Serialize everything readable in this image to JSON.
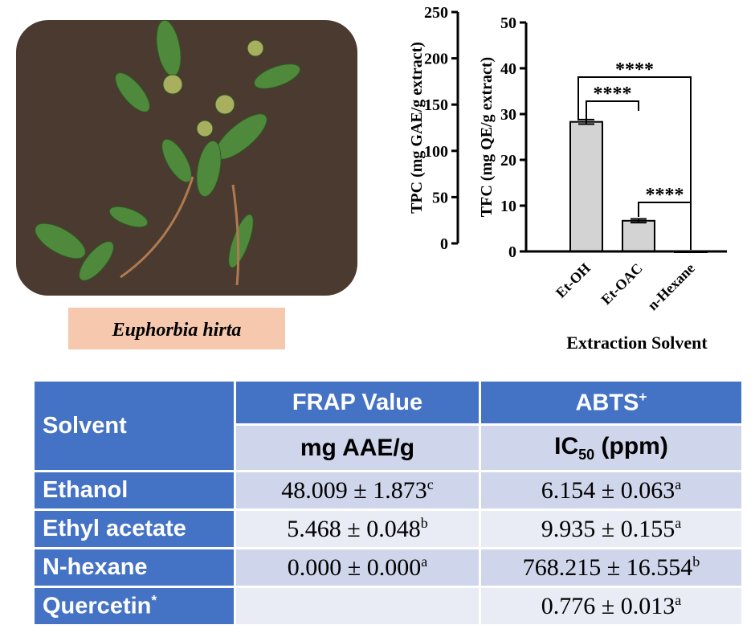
{
  "photo_caption": "Euphorbia hirta",
  "chart_data": [
    {
      "type": "bar",
      "ylabel": "TPC (mg GAE/g extract)",
      "ylim": [
        0,
        250
      ],
      "yticks": [
        0,
        50,
        100,
        150,
        200,
        250
      ]
    },
    {
      "type": "bar",
      "ylabel": "TFC (mg QE/g extract)",
      "xlabel": "Extraction Solvent",
      "categories": [
        "Et-OH",
        "Et-OAC",
        "n-Hexane"
      ],
      "values": [
        28.3,
        6.7,
        0
      ],
      "errors": [
        0.5,
        0.4,
        null
      ],
      "color": "#d3d3d3",
      "ylim": [
        0,
        50
      ],
      "yticks": [
        0,
        10,
        20,
        30,
        40,
        50
      ],
      "annotations": [
        "****",
        "****",
        "****"
      ]
    }
  ],
  "table": {
    "header": [
      "Solvent",
      "FRAP Value",
      {
        "text": "ABTS",
        "sup": "+"
      }
    ],
    "subheader": [
      "mg AAE/g",
      {
        "text": "IC",
        "sub": "50",
        "rest": " (ppm)"
      }
    ],
    "rows": [
      [
        "Ethanol",
        {
          "text": "48.009 ± 1.873",
          "sup": "c"
        },
        {
          "text": "6.154 ± 0.063",
          "sup": "a"
        }
      ],
      [
        "Ethyl acetate",
        {
          "text": "5.468 ± 0.048",
          "sup": "b"
        },
        {
          "text": "9.935 ± 0.155",
          "sup": "a"
        }
      ],
      [
        "N-hexane",
        {
          "text": "0.000 ± 0.000",
          "sup": "a"
        },
        {
          "text": "768.215 ± 16.554",
          "sup": "b"
        }
      ],
      [
        {
          "text": "Quercetin",
          "sup": "*"
        },
        null,
        {
          "text": "0.776 ± 0.013",
          "sup": "a"
        }
      ]
    ]
  }
}
